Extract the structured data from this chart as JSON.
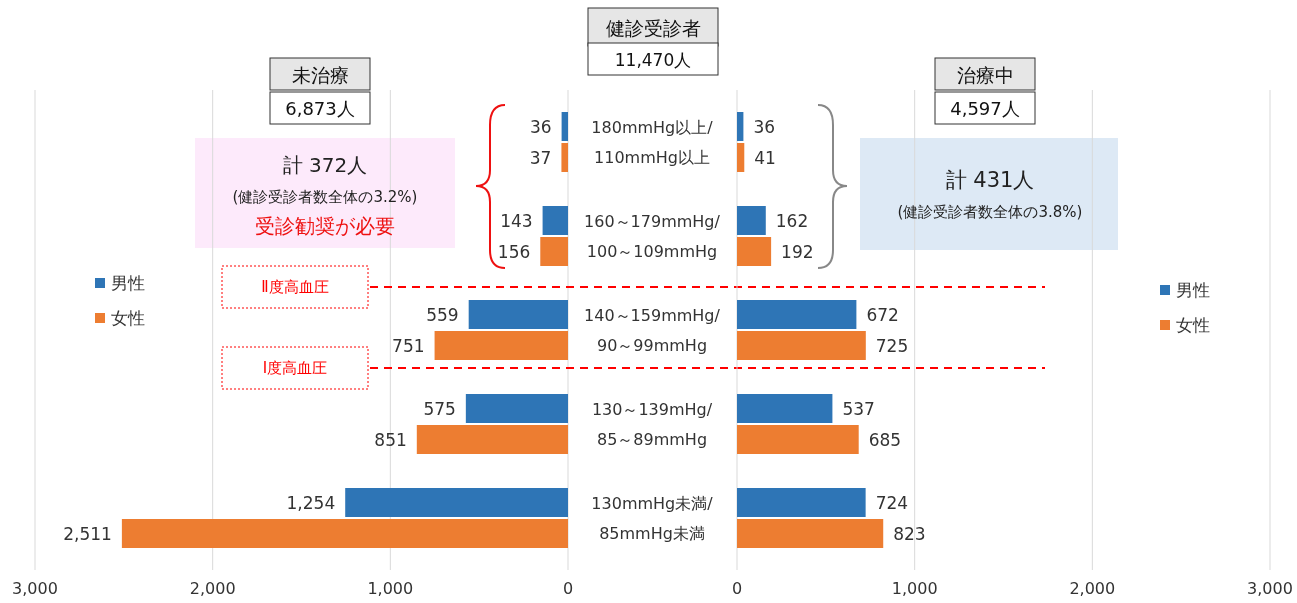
{
  "chart_data": [
    {
      "type": "bar",
      "orientation": "horizontal",
      "title": "未治療",
      "subtitle": "6,873人",
      "categories": [
        "180mmHg以上/110mmHg以上",
        "160～179mmHg/100～109mmHg",
        "140～159mmHg/90～99mmHg",
        "130～139mHg/85～89mmHg",
        "130mmHg未満/85mmHg未満"
      ],
      "series": [
        {
          "name": "男性",
          "color": "#2e75b6",
          "values": [
            36,
            143,
            559,
            575,
            1254
          ],
          "value_labels": [
            "36",
            "143",
            "559",
            "575",
            "1,254"
          ]
        },
        {
          "name": "女性",
          "color": "#ed7d31",
          "values": [
            37,
            156,
            751,
            851,
            2511
          ],
          "value_labels": [
            "37",
            "156",
            "751",
            "851",
            "2,511"
          ]
        }
      ],
      "xlim": [
        3000,
        0
      ],
      "xticks": [
        {
          "value": 3000,
          "label": "3,000"
        },
        {
          "value": 2000,
          "label": "2,000"
        },
        {
          "value": 1000,
          "label": "1,000"
        },
        0
      ],
      "grid": "x",
      "legend": "left",
      "annotations": [
        "健診受診者",
        "11,470人",
        "計 372人",
        "(健診受診者数全体の3.2%)",
        "受診勧奨が必要",
        "Ⅱ度高血圧",
        "Ⅰ度高血圧"
      ]
    },
    {
      "type": "bar",
      "orientation": "horizontal",
      "title": "治療中",
      "subtitle": "4,597人",
      "categories": [
        null,
        null,
        null,
        null,
        null
      ],
      "series": [
        {
          "name": "男性",
          "color": "#2e75b6",
          "values": [
            36,
            162,
            672,
            537,
            724
          ],
          "value_labels": [
            "36",
            "162",
            "672",
            "537",
            "724"
          ]
        },
        {
          "name": "女性",
          "color": "#ed7d31",
          "values": [
            41,
            192,
            725,
            685,
            823
          ],
          "value_labels": [
            "41",
            "192",
            "725",
            "685",
            "823"
          ]
        }
      ],
      "xlim": [
        0,
        3000
      ],
      "xticks": [
        0,
        {
          "value": 1000,
          "label": "1,000"
        },
        {
          "value": 2000,
          "label": "2,000"
        },
        {
          "value": 3000,
          "label": "3,000"
        }
      ],
      "grid": "x",
      "legend": "right",
      "annotations": [
        "計 431人",
        "(健診受診者数全体の3.8%)"
      ]
    }
  ]
}
